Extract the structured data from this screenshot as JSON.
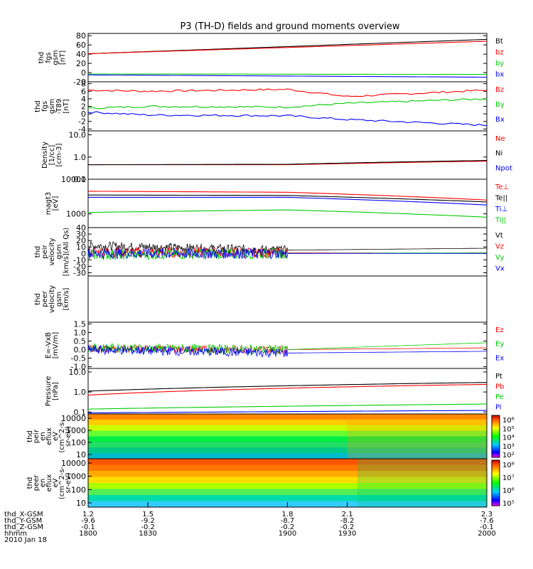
{
  "title": "P3 (TH-D) fields and ground moments overview",
  "chart_data": {
    "type": "line",
    "title": "P3 (TH-D) fields and ground moments overview",
    "x_axis": {
      "time_ticks": [
        "1800",
        "1830",
        "1900",
        "1930",
        "2000"
      ],
      "time_range": [
        "1800",
        "2000"
      ],
      "rows": [
        {
          "label": "thd_X-GSM",
          "values": [
            "1.2",
            "1.5",
            "1.8",
            "2.1",
            "2.3"
          ]
        },
        {
          "label": "thd_Y-GSM",
          "values": [
            "-9.6",
            "-9.2",
            "-8.7",
            "-8.2",
            "-7.6"
          ]
        },
        {
          "label": "thd_Z-GSM",
          "values": [
            "-0.1",
            "-0.2",
            "-0.2",
            "-0.2",
            "-0.1"
          ]
        },
        {
          "label": "hhmm",
          "values": [
            "1800",
            "1830",
            "1900",
            "1930",
            "2000"
          ]
        }
      ],
      "date": "2010 Jan 18"
    },
    "panels": [
      {
        "ylabel": [
          "thd",
          "fgs",
          "gsm",
          "[nT]"
        ],
        "ticks": [
          "80",
          "60",
          "40",
          "20",
          "0",
          "-20"
        ],
        "ylim": [
          -20,
          85
        ],
        "scale": "linear",
        "series": [
          {
            "name": "Bt",
            "color": "#000000",
            "x": [
              1800,
              2000
            ],
            "y": [
              41,
              72
            ]
          },
          {
            "name": "bz",
            "color": "#ff0000",
            "x": [
              1800,
              2000
            ],
            "y": [
              41,
              68
            ]
          },
          {
            "name": "by",
            "color": "#00cc00",
            "x": [
              1800,
              2000
            ],
            "y": [
              -3,
              -4
            ]
          },
          {
            "name": "bx",
            "color": "#0000ff",
            "x": [
              1800,
              2000
            ],
            "y": [
              -5,
              -10
            ]
          }
        ]
      },
      {
        "ylabel": [
          "thd",
          "fgs",
          "gsm",
          "-T89",
          "[nT]"
        ],
        "ticks": [
          "8",
          "6",
          "4",
          "2",
          "0",
          "-2",
          "-4"
        ],
        "ylim": [
          -4.5,
          8.5
        ],
        "scale": "linear",
        "series": [
          {
            "name": "Bz",
            "color": "#ff0000",
            "x": [
              1800,
              1830,
              1900,
              1930,
              2000
            ],
            "y": [
              6.3,
              6.0,
              6.5,
              4.6,
              6.3
            ]
          },
          {
            "name": "By",
            "color": "#00cc00",
            "x": [
              1800,
              1830,
              1900,
              1930,
              2000
            ],
            "y": [
              1.5,
              2.0,
              1.8,
              2.8,
              4.0
            ]
          },
          {
            "name": "Bx",
            "color": "#0000ff",
            "x": [
              1800,
              1830,
              1900,
              1930,
              2000
            ],
            "y": [
              0.5,
              -0.3,
              -0.5,
              -1.5,
              -3.0
            ]
          }
        ]
      },
      {
        "ylabel": [
          "Density",
          "[1/cc]",
          "[cm-3]"
        ],
        "ticks": [
          "10.0",
          "1.0",
          "0.1"
        ],
        "ylim": [
          0.1,
          15
        ],
        "scale": "log",
        "series": [
          {
            "name": "Ne",
            "color": "#ff0000",
            "x": [
              1800,
              1900,
              2000
            ],
            "y": [
              0.45,
              0.45,
              0.65
            ]
          },
          {
            "name": "Ni",
            "color": "#000000",
            "x": [
              1800,
              1900,
              2000
            ],
            "y": [
              0.45,
              0.47,
              0.7
            ]
          },
          {
            "name": "Npot",
            "color": "#0000ff",
            "x": [
              1800,
              2000
            ],
            "y": [
              0,
              0
            ]
          }
        ]
      },
      {
        "ylabel": [
          "magt3",
          "[eV]"
        ],
        "ticks": [
          "10000",
          "1000"
        ],
        "ylim": [
          400,
          10000
        ],
        "scale": "log",
        "series": [
          {
            "name": "Te⊥",
            "color": "#ff0000",
            "x": [
              1800,
              1900,
              2000
            ],
            "y": [
              4500,
              4200,
              2500
            ]
          },
          {
            "name": "Te||",
            "color": "#000000",
            "x": [
              1800,
              1900,
              2000
            ],
            "y": [
              3500,
              3400,
              2200
            ]
          },
          {
            "name": "Ti⊥",
            "color": "#0000ff",
            "x": [
              1800,
              1900,
              2000
            ],
            "y": [
              3000,
              3000,
              1800
            ]
          },
          {
            "name": "Ti||",
            "color": "#00cc00",
            "x": [
              1800,
              1900,
              2000
            ],
            "y": [
              1100,
              1300,
              800
            ]
          }
        ]
      },
      {
        "ylabel": [
          "thd",
          "peir",
          "velocity",
          "gsm",
          "[km/s](All Qs)"
        ],
        "ticks": [
          "40",
          "30",
          "20",
          "10",
          "0",
          "-10",
          "-20",
          "-30"
        ],
        "ylim": [
          -35,
          40
        ],
        "scale": "linear",
        "series": [
          {
            "name": "Vt",
            "color": "#000000",
            "x": [
              1800,
              1900,
              2000
            ],
            "y": [
              12,
              5,
              8
            ]
          },
          {
            "name": "Vz",
            "color": "#ff0000",
            "x": [
              1800,
              1900,
              2000
            ],
            "y": [
              2,
              1,
              0
            ]
          },
          {
            "name": "Vy",
            "color": "#00cc00",
            "x": [
              1800,
              1900,
              2000
            ],
            "y": [
              -2,
              0,
              1
            ]
          },
          {
            "name": "Vx",
            "color": "#0000ff",
            "x": [
              1800,
              1900,
              2000
            ],
            "y": [
              0,
              0,
              0
            ]
          }
        ]
      },
      {
        "ylabel": [
          "thd",
          "peer",
          "velocity",
          "gsm",
          "[km/s]"
        ],
        "ticks": [],
        "ylim": [
          0,
          1
        ],
        "scale": "linear",
        "series": [
          {
            "name": "Vt",
            "color": "#000000",
            "x": [],
            "y": []
          },
          {
            "name": "Vz",
            "color": "#ff0000",
            "x": [],
            "y": []
          },
          {
            "name": "Vy",
            "color": "#00cc00",
            "x": [],
            "y": []
          },
          {
            "name": "Vx",
            "color": "#0000ff",
            "x": [],
            "y": []
          }
        ]
      },
      {
        "ylabel": [
          "E=-VxB",
          "[mV/m]"
        ],
        "ticks": [
          "1.5",
          "1.0",
          "0.5",
          "0.0",
          "-0.5",
          "-1.0"
        ],
        "ylim": [
          -1.1,
          1.6
        ],
        "scale": "linear",
        "series": [
          {
            "name": "Ez",
            "color": "#ff0000",
            "x": [
              1800,
              1900,
              2000
            ],
            "y": [
              0.05,
              0.0,
              0.1
            ]
          },
          {
            "name": "Ey",
            "color": "#00cc00",
            "x": [
              1800,
              1900,
              2000
            ],
            "y": [
              0.1,
              0.0,
              0.4
            ]
          },
          {
            "name": "Ex",
            "color": "#0000ff",
            "x": [
              1800,
              1900,
              2000
            ],
            "y": [
              0.0,
              -0.2,
              -0.1
            ]
          }
        ]
      },
      {
        "ylabel": [
          "Pressure",
          "[nPa]"
        ],
        "ticks": [
          "10.0",
          "1.0",
          "0.1"
        ],
        "ylim": [
          0.08,
          15
        ],
        "scale": "log",
        "series": [
          {
            "name": "Pt",
            "color": "#000000",
            "x": [
              1800,
              2000
            ],
            "y": [
              1.1,
              3.0
            ]
          },
          {
            "name": "Pb",
            "color": "#ff0000",
            "x": [
              1800,
              2000
            ],
            "y": [
              0.7,
              2.4
            ]
          },
          {
            "name": "Pe",
            "color": "#00cc00",
            "x": [
              1800,
              2000
            ],
            "y": [
              0.14,
              0.25
            ]
          },
          {
            "name": "Pi",
            "color": "#0000ff",
            "x": [
              1800,
              2000
            ],
            "y": [
              0.09,
              0.12
            ]
          }
        ]
      }
    ],
    "spectrograms": [
      {
        "ylabel": [
          "thd",
          "peir",
          "en",
          "eflux",
          "eV",
          "(cm^2-s-",
          "sr-eV)"
        ],
        "ticks": [
          "10000",
          "1000",
          "100",
          "10"
        ],
        "colorbar_ticks": [
          "10⁶",
          "10⁵",
          "10⁴",
          "10³",
          "10²"
        ]
      },
      {
        "ylabel": [
          "thd",
          "peer",
          "en",
          "eflux",
          "eV",
          "(cm^2-s-",
          "sr-eV)"
        ],
        "ticks": [
          "10000",
          "1000",
          "100",
          "10"
        ],
        "colorbar_ticks": [
          "10⁸",
          "10⁷",
          "10⁶",
          "10⁵"
        ]
      }
    ]
  }
}
